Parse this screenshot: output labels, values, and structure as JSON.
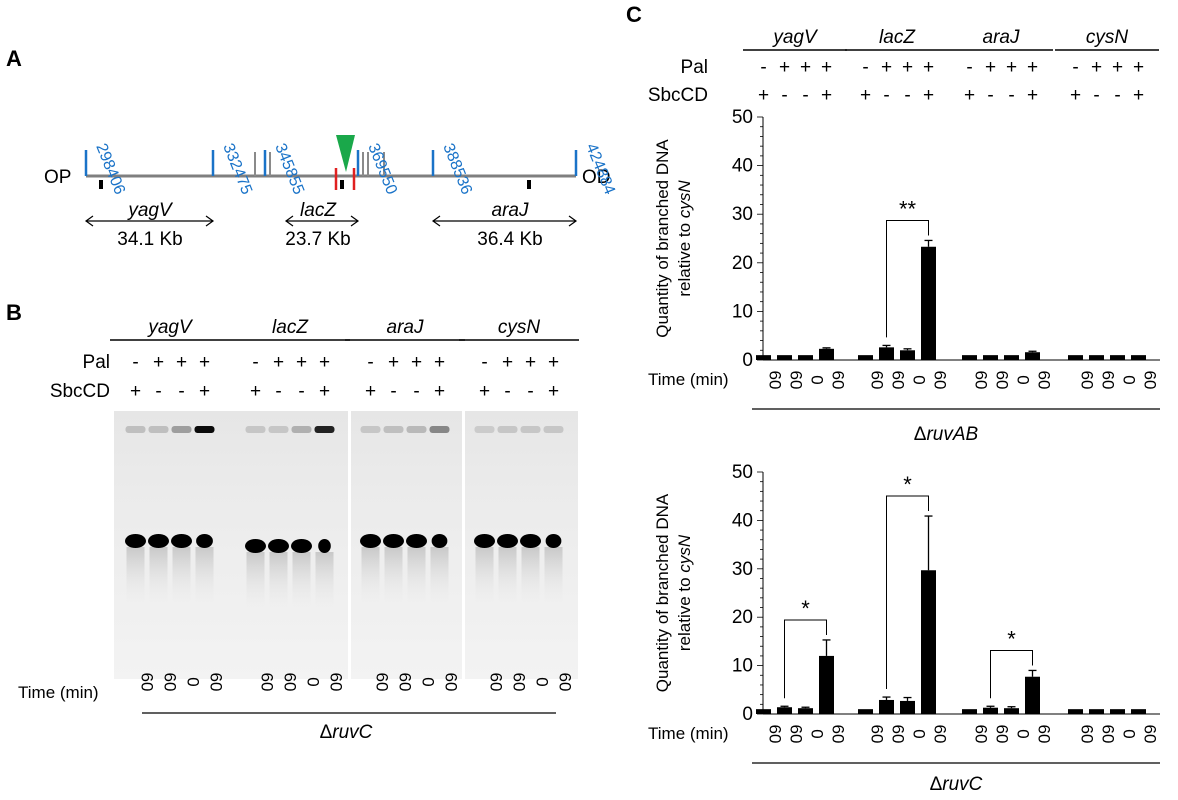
{
  "panels": {
    "a": "A",
    "b": "B",
    "c": "C"
  },
  "map": {
    "op": "OP",
    "od": "OD",
    "positions": [
      "298406",
      "332475",
      "345855",
      "369550",
      "388536",
      "424884"
    ],
    "regions": [
      {
        "gene": "yagV",
        "size": "34.1 Kb"
      },
      {
        "gene": "lacZ",
        "size": "23.7 Kb"
      },
      {
        "gene": "araJ",
        "size": "36.4 Kb"
      }
    ],
    "colors": {
      "axis": "#7f7f7f",
      "marker": "#1a73c8",
      "cut": "#e02020",
      "palindrome": "#1aa84a"
    }
  },
  "conditions": {
    "genes": [
      "yagV",
      "lacZ",
      "araJ",
      "cysN"
    ],
    "pal_label": "Pal",
    "sbccd_label": "SbcCD",
    "time_label": "Time (min)",
    "pal": [
      "-",
      "+",
      "+",
      "+"
    ],
    "sbccd": [
      "+",
      "-",
      "-",
      "+"
    ],
    "time": [
      "60",
      "60",
      "0",
      "60"
    ]
  },
  "gel": {
    "strain": "ΔruvC"
  },
  "chart_data": [
    {
      "type": "bar",
      "strain": "ΔruvAB",
      "ylabel": "Quantity of branched DNA relative to cysN",
      "ylim": [
        0,
        50
      ],
      "yticks": [
        0,
        10,
        20,
        30,
        40,
        50
      ],
      "groups": [
        "yagV",
        "lacZ",
        "araJ",
        "cysN"
      ],
      "values": [
        [
          1.0,
          1.0,
          1.0,
          2.3
        ],
        [
          1.0,
          2.6,
          2.0,
          23.3
        ],
        [
          1.0,
          1.0,
          1.0,
          1.6
        ],
        [
          1.0,
          1.0,
          1.0,
          1.0
        ]
      ],
      "errors": [
        [
          0,
          0,
          0,
          0.2
        ],
        [
          0,
          0.4,
          0.3,
          1.3
        ],
        [
          0,
          0,
          0,
          0.2
        ],
        [
          0,
          0,
          0,
          0
        ]
      ],
      "significance": [
        {
          "group": "lacZ",
          "label": "**"
        }
      ]
    },
    {
      "type": "bar",
      "strain": "ΔruvC",
      "ylabel": "Quantity of branched DNA relative to cysN",
      "ylim": [
        0,
        50
      ],
      "yticks": [
        0,
        10,
        20,
        30,
        40,
        50
      ],
      "groups": [
        "yagV",
        "lacZ",
        "araJ",
        "cysN"
      ],
      "values": [
        [
          1.0,
          1.4,
          1.2,
          12.0
        ],
        [
          1.0,
          2.9,
          2.7,
          29.7
        ],
        [
          1.0,
          1.3,
          1.2,
          7.7
        ],
        [
          1.0,
          1.0,
          1.0,
          1.0
        ]
      ],
      "errors": [
        [
          0,
          0.2,
          0.2,
          3.3
        ],
        [
          0,
          0.6,
          0.7,
          11.2
        ],
        [
          0,
          0.3,
          0.3,
          1.3
        ],
        [
          0,
          0,
          0,
          0
        ]
      ],
      "significance": [
        {
          "group": "yagV",
          "label": "*"
        },
        {
          "group": "lacZ",
          "label": "*"
        },
        {
          "group": "araJ",
          "label": "*"
        }
      ]
    }
  ]
}
